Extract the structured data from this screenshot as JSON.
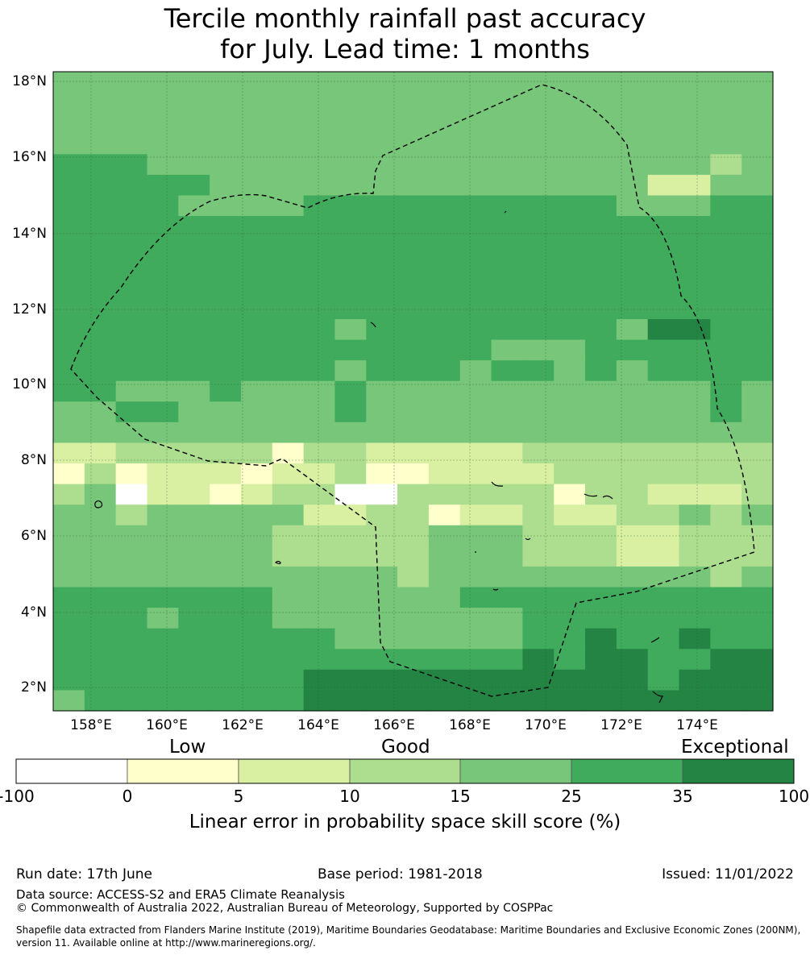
{
  "title": {
    "line1": "Tercile monthly rainfall past accuracy",
    "line2": "for July. Lead time: 1 months"
  },
  "map": {
    "lat_labels": [
      "18°N",
      "16°N",
      "14°N",
      "12°N",
      "10°N",
      "8°N",
      "6°N",
      "4°N",
      "2°N"
    ],
    "lon_labels": [
      "158°E",
      "160°E",
      "162°E",
      "164°E",
      "166°E",
      "168°E",
      "170°E",
      "172°E",
      "174°E"
    ],
    "lon_range": [
      157,
      176
    ],
    "lat_range": [
      1.4,
      18.3
    ],
    "boundary_line": "dashed, black",
    "grid": true
  },
  "colorbar": {
    "categories": [
      "Low",
      "Good",
      "Exceptional"
    ],
    "ticks": [
      "-100",
      "0",
      "5",
      "10",
      "15",
      "25",
      "35",
      "100"
    ],
    "colors": [
      "#ffffff",
      "#ffffcc",
      "#d9f0a3",
      "#addd8e",
      "#78c679",
      "#41ab5d",
      "#238443"
    ],
    "title": "Linear error in probability space skill score (%)"
  },
  "footer": {
    "run_date": "Run date: 17th June",
    "base_period": "Base period: 1981-2018",
    "issued": "Issued: 11/01/2022",
    "data_source": "Data source: ACCESS-S2 and ERA5 Climate Reanalysis",
    "copyright": "© Commonwealth of Australia 2022, Australian Bureau of Meteorology, Supported by COSPPac",
    "shapefile_note": "Shapefile data extracted from Flanders Marine Institute (2019), Maritime Boundaries Geodatabase: Maritime Boundaries and Exclusive Economic Zones (200NM), version 11. Available online at http://www.marineregions.org/."
  }
}
